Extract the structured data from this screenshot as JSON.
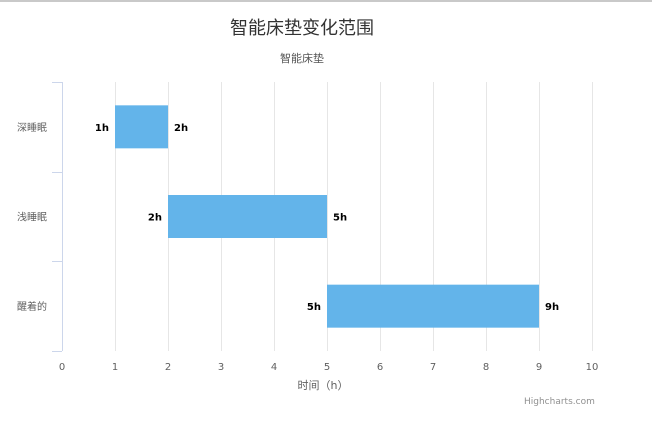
{
  "chart_data": {
    "type": "bar",
    "orientation": "horizontal",
    "subtype": "columnrange",
    "title": "智能床垫变化范围",
    "subtitle": "智能床垫",
    "categories": [
      "深睡眠",
      "浅睡眠",
      "醒着的"
    ],
    "series": [
      {
        "low": [
          1,
          2,
          5
        ],
        "high": [
          2,
          5,
          9
        ],
        "color": "#63b4ea"
      }
    ],
    "data_labels": {
      "low": [
        "1h",
        "2h",
        "5h"
      ],
      "high": [
        "2h",
        "5h",
        "9h"
      ]
    },
    "xlabel": "时间（h）",
    "xlim": [
      0,
      10
    ],
    "x_ticks": [
      "0",
      "1",
      "2",
      "3",
      "4",
      "5",
      "6",
      "7",
      "8",
      "9",
      "10"
    ],
    "grid": true,
    "legend": "none"
  },
  "credits": "Highcharts.com"
}
